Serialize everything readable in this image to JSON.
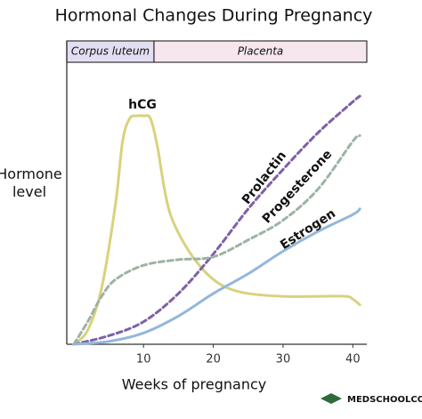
{
  "chart_data": {
    "type": "line",
    "title": "Hormonal Changes During Pregnancy",
    "x_label": "Weeks of pregnancy",
    "y_label": "Hormone level",
    "source": "MEDSCHOOLCOACH",
    "xlim": [
      -1,
      42
    ],
    "ylim": [
      0,
      100
    ],
    "xticks": [
      10,
      20,
      30,
      40
    ],
    "bands": [
      {
        "label": "Corpus luteum",
        "from": -1,
        "to": 11.5,
        "color": "#e4def3"
      },
      {
        "label": "Placenta",
        "from": 11.5,
        "to": 42,
        "color": "#f6e6ee"
      }
    ],
    "series": [
      {
        "name": "hCG",
        "color": "#d9d27c",
        "dashed": false,
        "x": [
          0,
          2,
          4,
          6,
          7,
          8,
          9,
          10,
          11,
          12,
          13,
          14,
          16,
          18,
          20,
          22,
          25,
          30,
          35,
          39,
          40,
          41
        ],
        "values": [
          0,
          5,
          20,
          50,
          72,
          80,
          81,
          81,
          80,
          70,
          55,
          45,
          35,
          28,
          23,
          20,
          18,
          17,
          17,
          17,
          16,
          14
        ]
      },
      {
        "name": "Prolactin",
        "color": "#7d60a8",
        "dashed": true,
        "x": [
          0,
          5,
          10,
          15,
          20,
          25,
          30,
          35,
          40,
          41
        ],
        "values": [
          0,
          3,
          8,
          18,
          32,
          48,
          62,
          75,
          86,
          88
        ]
      },
      {
        "name": "Progesterone",
        "color": "#9db3a3",
        "dashed": true,
        "x": [
          0,
          2,
          4,
          6,
          10,
          15,
          20,
          25,
          30,
          35,
          40,
          41
        ],
        "values": [
          0,
          8,
          17,
          23,
          28,
          30,
          31,
          37,
          44,
          55,
          72,
          74
        ]
      },
      {
        "name": "Estrogen",
        "color": "#93b7da",
        "dashed": false,
        "x": [
          0,
          5,
          10,
          15,
          20,
          25,
          30,
          35,
          40,
          41
        ],
        "values": [
          0,
          1,
          4,
          10,
          18,
          25,
          33,
          40,
          46,
          48
        ]
      }
    ]
  }
}
